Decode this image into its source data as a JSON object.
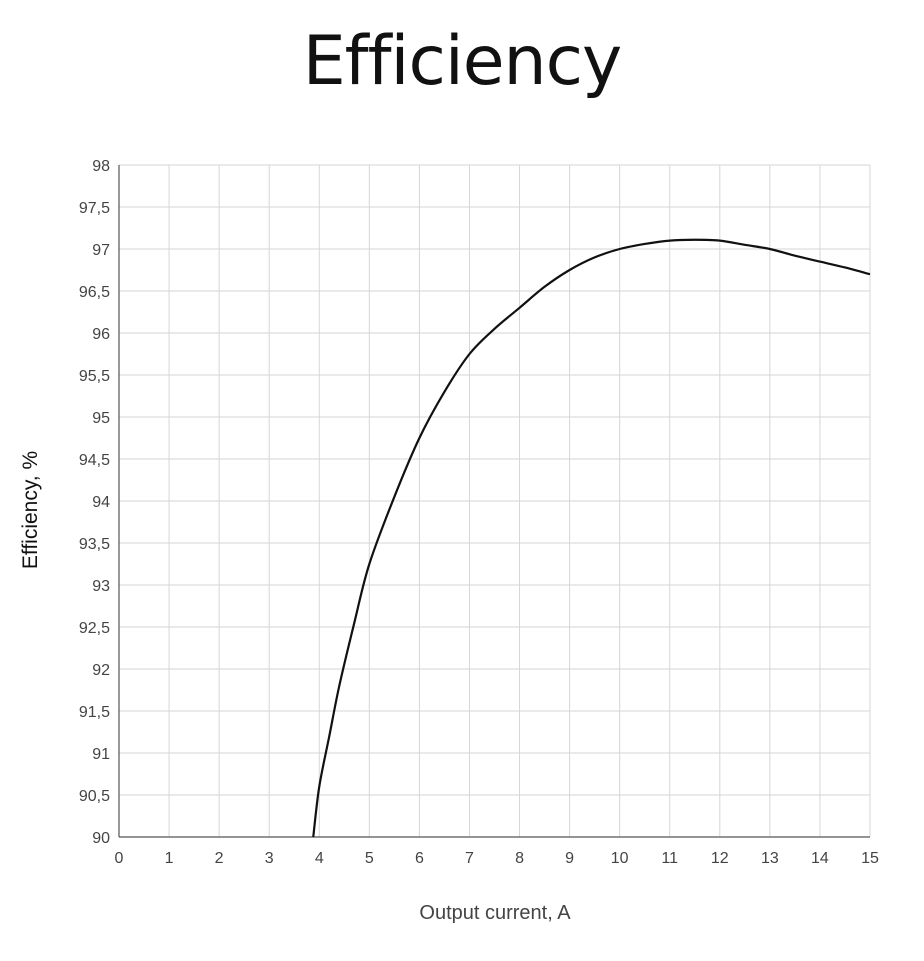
{
  "chart_data": {
    "type": "line",
    "title": "Efficiency",
    "xlabel": "Output current, A",
    "ylabel": "Efficiency, %",
    "xlim": [
      0,
      15
    ],
    "ylim": [
      90,
      98
    ],
    "grid": true,
    "x_ticks": [
      "0",
      "1",
      "2",
      "3",
      "4",
      "5",
      "6",
      "7",
      "8",
      "9",
      "10",
      "11",
      "12",
      "13",
      "14",
      "15"
    ],
    "y_ticks": [
      "90",
      "90,5",
      "91",
      "91,5",
      "92",
      "92,5",
      "93",
      "93,5",
      "94",
      "94,5",
      "95",
      "95,5",
      "96",
      "96,5",
      "97",
      "97,5",
      "98"
    ],
    "series": [
      {
        "color": "#111111",
        "x": [
          3.88,
          4.0,
          4.2,
          4.4,
          4.7,
          5.0,
          5.5,
          6.0,
          6.5,
          7.0,
          7.5,
          8.0,
          8.5,
          9.0,
          9.5,
          10.0,
          10.5,
          11.0,
          11.5,
          12.0,
          12.5,
          13.0,
          13.5,
          14.0,
          14.5,
          15.0
        ],
        "y": [
          90.0,
          90.6,
          91.2,
          91.8,
          92.55,
          93.25,
          94.05,
          94.75,
          95.3,
          95.75,
          96.05,
          96.3,
          96.55,
          96.75,
          96.9,
          97.0,
          97.06,
          97.1,
          97.11,
          97.1,
          97.05,
          97.0,
          96.92,
          96.85,
          96.78,
          96.7
        ]
      }
    ]
  }
}
